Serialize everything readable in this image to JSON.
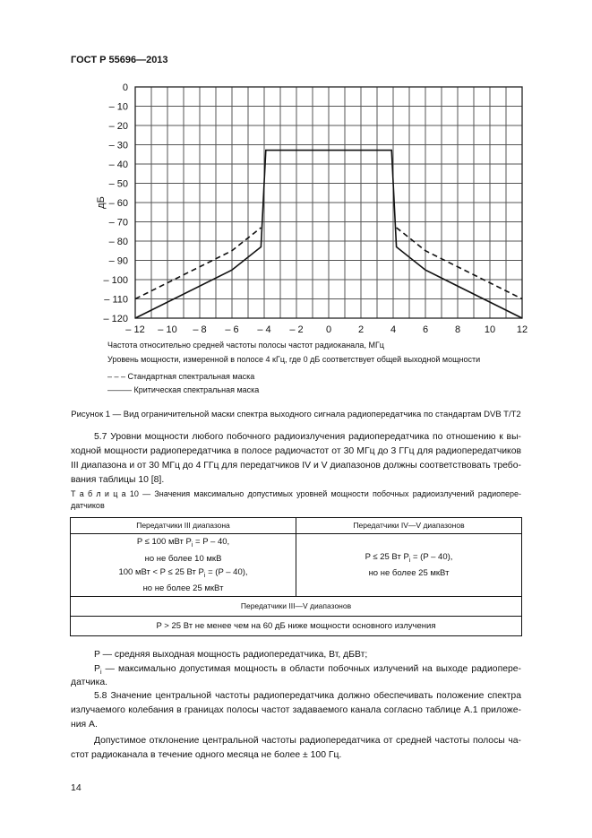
{
  "header": {
    "doc_code": "ГОСТ Р 55696—2013"
  },
  "chart_data": {
    "type": "line",
    "xlabel": "",
    "ylabel": "дБ",
    "xlim": [
      -12,
      12
    ],
    "ylim": [
      -120,
      0
    ],
    "x_ticks": [
      "– 12",
      "– 10",
      "– 8",
      "– 6",
      "– 4",
      "– 2",
      "0",
      "2",
      "4",
      "6",
      "8",
      "10",
      "12"
    ],
    "y_ticks": [
      "0",
      "– 10",
      "– 20",
      "– 30",
      "– 40",
      "– 50",
      "– 60",
      "– 70",
      "– 80",
      "– 90",
      "– 100",
      "– 110",
      "– 120"
    ],
    "grid": true,
    "series": [
      {
        "name": "Стандартная спектральная маска",
        "style": "dashed",
        "x": [
          -12,
          -6,
          -4.2
        ],
        "y": [
          -110,
          -85,
          -73
        ]
      },
      {
        "name": "Стандартная спектральная маска",
        "style": "dashed",
        "x": [
          4.2,
          6,
          12
        ],
        "y": [
          -73,
          -85,
          -110
        ]
      },
      {
        "name": "Критическая спектральная маска",
        "style": "solid",
        "x": [
          -12,
          -6,
          -4.2,
          -3.9,
          3.9,
          4.2,
          6,
          12
        ],
        "y": [
          -120,
          -95,
          -83,
          -32.8,
          -32.8,
          -83,
          -95,
          -120
        ]
      }
    ]
  },
  "figure": {
    "x_caption": "Частота относительно средней частоты полосы частот радиоканала, МГц",
    "y_caption": "Уровень мощности, измеренной в полосе 4 кГц, где 0 дБ соответствует общей выходной мощности",
    "legend_dashed": "– – – Стандартная спектральная маска",
    "legend_solid": "——— Критическая спектральная маска",
    "caption": "Рисунок 1 — Вид ограничительной маски спектра выходного сигнала радиопередатчика по стандартам DVB T/T2"
  },
  "para_5_7": [
    "5.7 Уровни мощности любого побочного радиоизлучения радиопередатчика по отношению к вы-",
    "ходной мощности радиопередатчика в полосе радиочастот от 30 МГц до 3 ГГц для радиопередатчиков",
    "III диапазона и от 30 МГц до 4 ГГц для передатчиков IV и V диапазонов должны соответствовать требо-",
    "вания таблицы 10 [8]."
  ],
  "table": {
    "title_lines": [
      "Т а б л и ц а   10 — Значения максимально допустимых уровней мощности побочных радиоизлучений радиопере-",
      "датчиков"
    ],
    "col1_header": "Передатчики III диапазона",
    "col2_header": "Передатчики IV—V диапазонов",
    "col1_lines": [
      "P ≤ 100 мВт P",
      "i",
      " = P – 40,",
      "но не более 10 мкВ",
      "100 мВт < P ≤ 25 Вт P",
      "i",
      " = (P – 40),",
      "но не более 25 мкВт"
    ],
    "col2_lines": [
      "P ≤ 25 Вт P",
      "i",
      " = (P – 40),",
      "но не более 25 мкВт"
    ],
    "span_header": "Передатчики III—V диапазонов",
    "span_value": "P > 25 Вт не менее чем на 60 дБ ниже мощности основного излучения"
  },
  "notes": {
    "p_def": "P — средняя выходная мощность радиопередатчика, Вт, дБВт;",
    "pi_def_1a": "P",
    "pi_def_1sub": "i",
    "pi_def_1b": " — максимально допустимая мощность в области побочных излучений на выходе радиопере-",
    "pi_def_2": "датчика."
  },
  "para_5_8": [
    "5.8 Значение центральной частоты радиопередатчика должно обеспечивать положение спектра",
    "излучаемого колебания в границах полосы частот задаваемого канала согласно таблице А.1 приложе-",
    "ния А."
  ],
  "para_dev": [
    "Допустимое отклонение центральной частоты радиопередатчика от средней частоты полосы ча-",
    "стот радиоканала в течение одного месяца не более ± 100 Гц."
  ],
  "page_number": "14"
}
